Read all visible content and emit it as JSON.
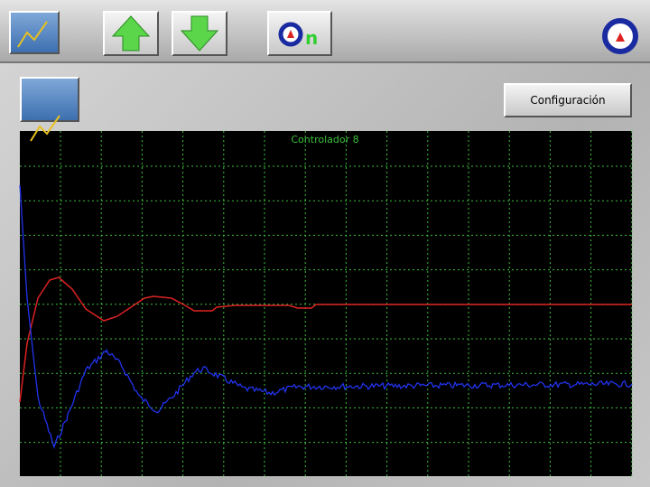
{
  "toolbar": {
    "on_label": "n"
  },
  "panel": {
    "config_button": "Configuración",
    "chart_title": "Controlador 8"
  }
}
